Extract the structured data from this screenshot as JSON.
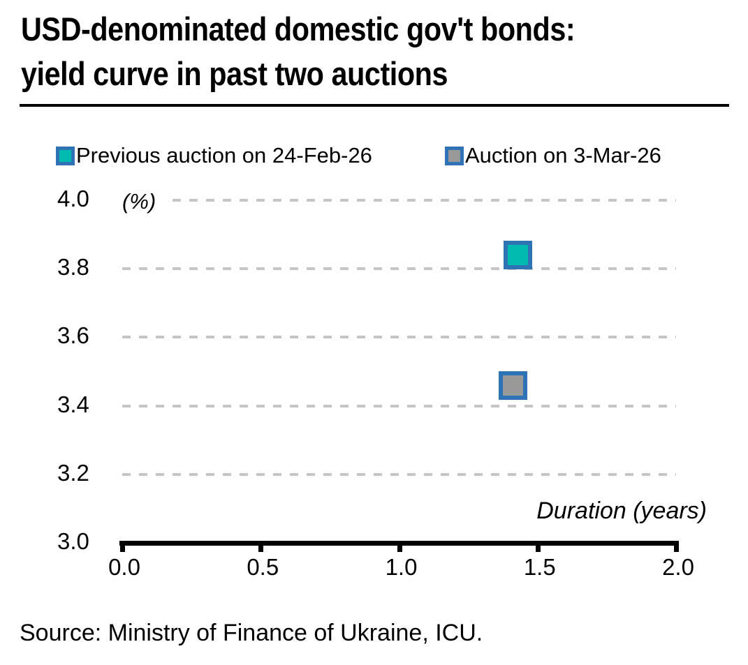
{
  "title": {
    "line1": "USD-denominated domestic gov't bonds:",
    "line2": "yield curve in past two auctions"
  },
  "source": "Source: Ministry of Finance of Ukraine, ICU.",
  "colors": {
    "teal_fill": "#00b9b1",
    "gray_fill": "#999999",
    "marker_border": "#2e74b5",
    "gridline": "#c5c5c5",
    "axis": "#000000",
    "title_rule": "#000000"
  },
  "chart_data": {
    "type": "scatter",
    "title": "USD-denominated domestic gov't bonds: yield curve in past two auctions",
    "xlabel": "Duration (years)",
    "ylabel": "(%)",
    "xlim": [
      0.0,
      2.0
    ],
    "ylim": [
      3.0,
      4.0
    ],
    "xticks": [
      0.0,
      0.5,
      1.0,
      1.5,
      2.0
    ],
    "yticks": [
      3.0,
      3.2,
      3.4,
      3.6,
      3.8,
      4.0
    ],
    "grid": "horizontal-dashed",
    "legend_position": "top",
    "series": [
      {
        "name": "Previous auction on 24-Feb-26",
        "marker": "square",
        "fill": "#00b9b1",
        "border": "#2e74b5",
        "points": [
          {
            "x": 1.43,
            "y": 3.84
          }
        ]
      },
      {
        "name": "Auction on 3-Mar-26",
        "marker": "square",
        "fill": "#999999",
        "border": "#2e74b5",
        "points": [
          {
            "x": 1.41,
            "y": 3.46
          }
        ]
      }
    ]
  }
}
